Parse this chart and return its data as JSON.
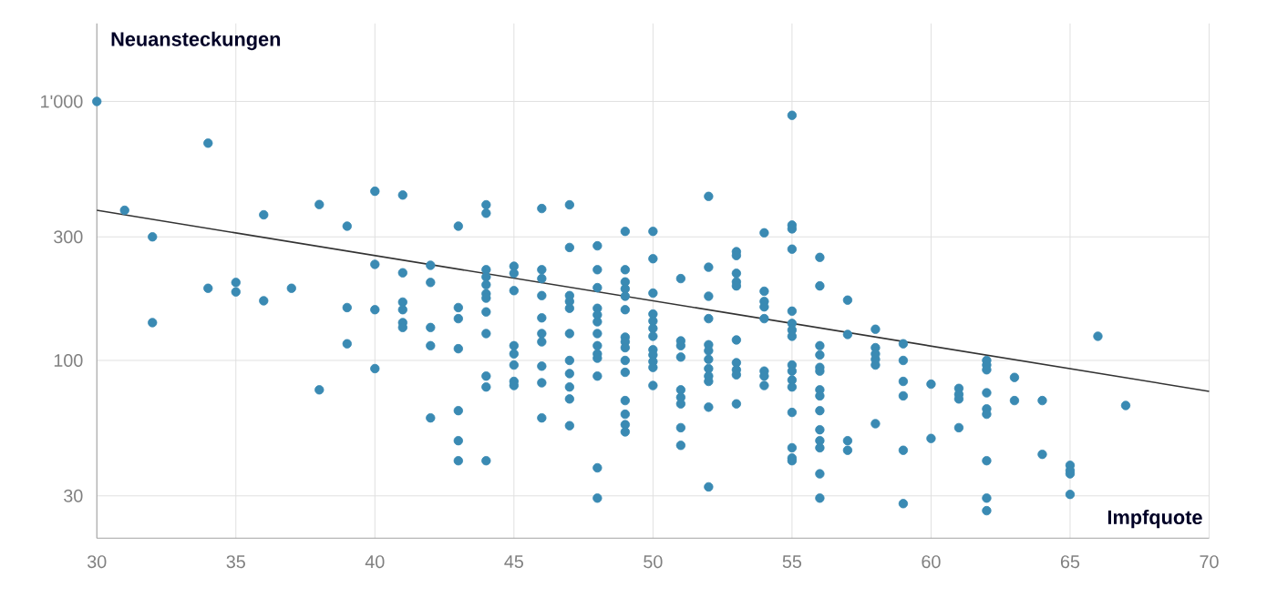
{
  "chart_data": {
    "type": "scatter",
    "xlabel": "Impfquote",
    "ylabel": "Neuansteckungen",
    "xlim": [
      30,
      70
    ],
    "xticks": [
      30,
      35,
      40,
      45,
      50,
      55,
      60,
      65,
      70
    ],
    "ylim": [
      20.6,
      2000
    ],
    "yticks": [
      30,
      100,
      300,
      {
        "value": 1000,
        "label": "1'000"
      }
    ],
    "log": "y",
    "grid": true,
    "series": [
      {
        "color": "#3a8ab3",
        "x": [
          30,
          31,
          32,
          32,
          34,
          34,
          35,
          35,
          36,
          36,
          37,
          38,
          38,
          39,
          39,
          39,
          40,
          40,
          40,
          40,
          41,
          41,
          41,
          41,
          41,
          41,
          42,
          42,
          42,
          42,
          42,
          43,
          43,
          43,
          43,
          43,
          43,
          43,
          44,
          44,
          44,
          44,
          44,
          44,
          44,
          44,
          44,
          44,
          44,
          44,
          45,
          45,
          45,
          45,
          45,
          45,
          45,
          45,
          46,
          46,
          46,
          46,
          46,
          46,
          46,
          46,
          46,
          46,
          47,
          47,
          47,
          47,
          47,
          47,
          47,
          47,
          47,
          47,
          47,
          48,
          48,
          48,
          48,
          48,
          48,
          48,
          48,
          48,
          48,
          48,
          48,
          48,
          49,
          49,
          49,
          49,
          49,
          49,
          49,
          49,
          49,
          49,
          49,
          49,
          49,
          49,
          49,
          50,
          50,
          50,
          50,
          50,
          50,
          50,
          50,
          50,
          50,
          50,
          50,
          51,
          51,
          51,
          51,
          51,
          51,
          51,
          51,
          51,
          52,
          52,
          52,
          52,
          52,
          52,
          52,
          52,
          52,
          52,
          52,
          52,
          53,
          53,
          53,
          53,
          53,
          53,
          53,
          53,
          53,
          53,
          54,
          54,
          54,
          54,
          54,
          54,
          54,
          54,
          55,
          55,
          55,
          55,
          55,
          55,
          55,
          55,
          55,
          55,
          55,
          55,
          55,
          55,
          55,
          55,
          56,
          56,
          56,
          56,
          56,
          56,
          56,
          56,
          56,
          56,
          56,
          56,
          56,
          56,
          57,
          57,
          57,
          57,
          58,
          58,
          58,
          58,
          58,
          58,
          59,
          59,
          59,
          59,
          59,
          59,
          60,
          60,
          61,
          61,
          61,
          61,
          62,
          62,
          62,
          62,
          62,
          62,
          62,
          62,
          62,
          63,
          63,
          64,
          64,
          65,
          65,
          65,
          65,
          66,
          67
        ],
        "values": [
          1000,
          380,
          300,
          140,
          690,
          190,
          200,
          184,
          365,
          170,
          190,
          400,
          77,
          330,
          160,
          116,
          450,
          235,
          157,
          93,
          435,
          218,
          168,
          157,
          140,
          134,
          233,
          200,
          134,
          114,
          60,
          330,
          160,
          145,
          111,
          64,
          49,
          41,
          399,
          370,
          224,
          210,
          196,
          181,
          174,
          154,
          127,
          87,
          79,
          41,
          231,
          217,
          186,
          114,
          106,
          96,
          83,
          80,
          386,
          224,
          207,
          178,
          146,
          127,
          118,
          95,
          82,
          60,
          399,
          273,
          178,
          169,
          159,
          127,
          100,
          89,
          79,
          71,
          56,
          277,
          224,
          191,
          159,
          150,
          141,
          127,
          114,
          106,
          102,
          87,
          38.5,
          29.4,
          315,
          224,
          201,
          189,
          177,
          157,
          123,
          118,
          112,
          100,
          90,
          70,
          62,
          56.5,
          53,
          315,
          247,
          182,
          151,
          142,
          133,
          124,
          110,
          105,
          99,
          94,
          80,
          207,
          119,
          114,
          103,
          77,
          72,
          68,
          55,
          47,
          430,
          229,
          177,
          145,
          115,
          109,
          101,
          93,
          87,
          83,
          66,
          32.5,
          263,
          254,
          217,
          201,
          194,
          120,
          98,
          92,
          88,
          68,
          311,
          185,
          169,
          161,
          145,
          91,
          87,
          80,
          884,
          333,
          322,
          269,
          155,
          139,
          131,
          124,
          96,
          91,
          84,
          79,
          63,
          46,
          42,
          41,
          250,
          194,
          114,
          105,
          94,
          91,
          77,
          73,
          64,
          54,
          49,
          46,
          36.5,
          29.4,
          171,
          126,
          49,
          45,
          132,
          112,
          106,
          101,
          96,
          57,
          116,
          100,
          83,
          73,
          45,
          28,
          81,
          50,
          78,
          74,
          71,
          55,
          100,
          96,
          92,
          75,
          65,
          62,
          41,
          29.4,
          26.3,
          86,
          70,
          70,
          43.4,
          39.4,
          37.6,
          36.5,
          30.4,
          124,
          67
        ]
      },
      {
        "type": "line",
        "color": "#333333",
        "x": [
          30,
          70
        ],
        "values": [
          380,
          76
        ]
      }
    ]
  }
}
